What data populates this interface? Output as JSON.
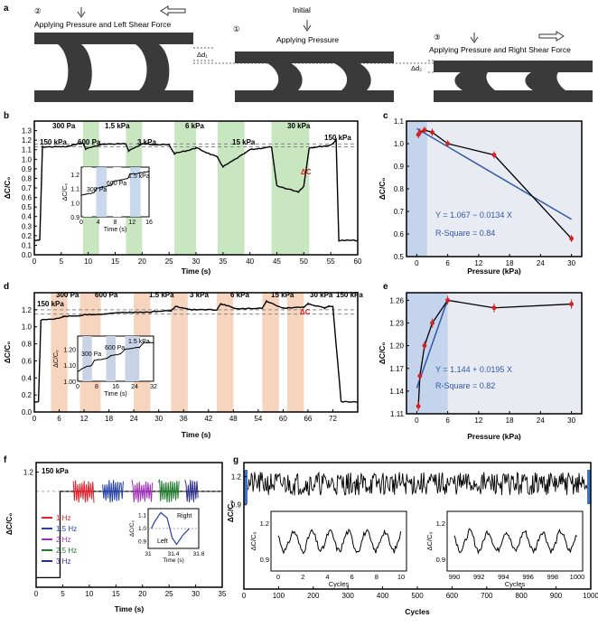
{
  "panel_letters": [
    "a",
    "b",
    "c",
    "d",
    "e",
    "f",
    "g"
  ],
  "panel_a": {
    "states": [
      {
        "num": "②",
        "label": "Applying Pressure and Left Shear Force",
        "arrows": [
          "down-arrow",
          "left-arrow"
        ]
      },
      {
        "num": "①",
        "top": "Initial",
        "label": "Applying Pressure",
        "arrows": [
          "down-arrow"
        ]
      },
      {
        "num": "③",
        "label": "Applying Pressure and Right Shear Force",
        "arrows": [
          "down-arrow",
          "right-arrow"
        ]
      }
    ],
    "d1": "Δd₁",
    "d2": "Δd₂"
  },
  "chart_data": [
    {
      "id": "b",
      "type": "line",
      "xlabel": "Time (s)",
      "ylabel": "ΔC/C₀",
      "xlim": [
        0,
        60
      ],
      "ylim": [
        0,
        1.4
      ],
      "xticks": [
        0,
        5,
        10,
        15,
        20,
        25,
        30,
        35,
        40,
        45,
        50,
        55,
        60
      ],
      "yticks": [
        0,
        0.1,
        0.2,
        0.3,
        0.4,
        0.5,
        0.6,
        0.7,
        0.8,
        0.9,
        1.0,
        1.1,
        1.2,
        1.3
      ],
      "series": [
        {
          "x": [
            0,
            1,
            1.5,
            6,
            7,
            9,
            9.5,
            13,
            14,
            17,
            17.5,
            20,
            21,
            25,
            26,
            29,
            30,
            34,
            35,
            39,
            40,
            44,
            45,
            49,
            50,
            51,
            54,
            55,
            56,
            56.5,
            60
          ],
          "y": [
            0.15,
            0.15,
            1.13,
            1.13,
            1.15,
            1.17,
            1.11,
            1.16,
            1.16,
            1.16,
            1.09,
            1.16,
            1.16,
            1.15,
            1.06,
            1.1,
            1.12,
            1.02,
            0.92,
            1.06,
            1.1,
            1.13,
            0.72,
            0.66,
            0.72,
            1.12,
            1.14,
            1.15,
            1.2,
            0.15,
            0.15
          ]
        }
      ],
      "shaded_x": [
        [
          9,
          12
        ],
        [
          17,
          20
        ],
        [
          26,
          30
        ],
        [
          34,
          39
        ],
        [
          44,
          51
        ]
      ],
      "dashed_lines": [
        1.13,
        1.16
      ],
      "annotations": [
        "150 kPa",
        "300 Pa",
        "600 Pa",
        "1.5 kPa",
        "3 kPa",
        "6 kPa",
        "15 kPa",
        "30 kPa",
        "150 kPa",
        "ΔC"
      ],
      "inset": {
        "xlabel": "Time (s)",
        "ylabel": "ΔC/C₀",
        "xticks": [
          0,
          4,
          8,
          12,
          16
        ],
        "yticks": [
          0.9,
          1.0,
          1.1,
          1.2
        ],
        "labels": [
          "300 Pa",
          "600 Pa",
          "1.5 kPa"
        ],
        "x": [
          0,
          1,
          3,
          3.5,
          5,
          7,
          7.5,
          9.5,
          11,
          11.5,
          14,
          16
        ],
        "y": [
          1.05,
          1.06,
          1.07,
          1.1,
          1.11,
          1.12,
          1.15,
          1.16,
          1.17,
          1.2,
          1.21,
          1.22
        ]
      }
    },
    {
      "id": "c",
      "type": "line",
      "xlabel": "Pressure (kPa)",
      "ylabel": "ΔC/C₀",
      "xlim": [
        -2,
        32
      ],
      "ylim": [
        0.5,
        1.1
      ],
      "xticks": [
        0,
        6,
        12,
        18,
        24,
        30
      ],
      "yticks": [
        0.5,
        0.6,
        0.7,
        0.8,
        0.9,
        1.0,
        1.1
      ],
      "series": [
        {
          "x": [
            0.3,
            0.6,
            1.5,
            3,
            6,
            15,
            30
          ],
          "y": [
            1.04,
            1.05,
            1.06,
            1.05,
            1.0,
            0.95,
            0.58
          ]
        }
      ],
      "fit": {
        "equation": "Y = 1.067 − 0.0134 X",
        "r_square": "R-Square = 0.84",
        "slope": -0.0134,
        "intercept": 1.067
      }
    },
    {
      "id": "d",
      "type": "line",
      "xlabel": "Time (s)",
      "ylabel": "ΔC/C₀",
      "xlim": [
        0,
        78
      ],
      "ylim": [
        0,
        1.4
      ],
      "xticks": [
        0,
        6,
        12,
        18,
        24,
        30,
        36,
        42,
        48,
        54,
        60,
        66,
        72
      ],
      "yticks": [
        0,
        0.2,
        0.4,
        0.6,
        0.8,
        1.0,
        1.2
      ],
      "series": [
        {
          "x": [
            0,
            1,
            1.6,
            6,
            7,
            11,
            12,
            17,
            18,
            23,
            24,
            28,
            29,
            33,
            34,
            38,
            39,
            44,
            45,
            49,
            50,
            55,
            56,
            60,
            61,
            65,
            66,
            70,
            71,
            72,
            74,
            78
          ],
          "y": [
            0.12,
            0.12,
            1.08,
            1.1,
            1.12,
            1.13,
            1.14,
            1.15,
            1.16,
            1.17,
            1.17,
            1.17,
            1.18,
            1.19,
            1.24,
            1.2,
            1.2,
            1.2,
            1.27,
            1.21,
            1.21,
            1.22,
            1.3,
            1.22,
            1.22,
            1.23,
            1.27,
            1.22,
            1.24,
            1.24,
            0.12,
            0.12
          ]
        }
      ],
      "shaded_x": [
        [
          4,
          8
        ],
        [
          11,
          16
        ],
        [
          24,
          28
        ],
        [
          33,
          37
        ],
        [
          44,
          48
        ],
        [
          55,
          59
        ],
        [
          61,
          65
        ]
      ],
      "dashed_lines": [
        1.15,
        1.2
      ],
      "annotations": [
        "150 kPa",
        "300 Pa",
        "600 Pa",
        "1.5 kPa",
        "3 kPa",
        "6 kPa",
        "15 kPa",
        "30 kPa",
        "150 kPa",
        "ΔC"
      ],
      "inset": {
        "xlabel": "Time (s)",
        "ylabel": "ΔC/C₀",
        "xticks": [
          0,
          8,
          16,
          24,
          32
        ],
        "yticks": [
          1.0,
          1.1,
          1.2
        ],
        "labels": [
          "300 Pa",
          "600 Pa",
          "1.5 kPa"
        ],
        "x": [
          0,
          2,
          6,
          7,
          12,
          14,
          18,
          20,
          26,
          28,
          32
        ],
        "y": [
          1.06,
          1.08,
          1.1,
          1.13,
          1.14,
          1.16,
          1.17,
          1.2,
          1.21,
          1.24,
          1.24
        ]
      }
    },
    {
      "id": "e",
      "type": "line",
      "xlabel": "Pressure (kPa)",
      "ylabel": "ΔC/C₀",
      "xlim": [
        -2,
        32
      ],
      "ylim": [
        1.11,
        1.27
      ],
      "xticks": [
        0,
        6,
        12,
        18,
        24,
        30
      ],
      "yticks": [
        1.11,
        1.14,
        1.17,
        1.2,
        1.23,
        1.26
      ],
      "series": [
        {
          "x": [
            0.3,
            0.6,
            1.5,
            3,
            6,
            15,
            30
          ],
          "y": [
            1.12,
            1.16,
            1.2,
            1.23,
            1.26,
            1.25,
            1.255
          ]
        }
      ],
      "fit": {
        "equation": "Y = 1.144 + 0.0195 X",
        "r_square": "R-Square = 0.82",
        "slope": 0.0195,
        "intercept": 1.144
      }
    },
    {
      "id": "f",
      "type": "line",
      "xlabel": "Time (s)",
      "ylabel": "ΔC/C₀",
      "xlim": [
        0,
        35
      ],
      "ylim": [
        0,
        1.3
      ],
      "xticks": [
        0,
        5,
        10,
        15,
        20,
        25,
        30,
        35
      ],
      "yticks": [
        1.2
      ],
      "baseline": 0.1,
      "plateau": 1.0,
      "step_x": 4.5,
      "bursts": [
        {
          "name": "1 Hz",
          "from": 7,
          "to": 11,
          "color": "#e0202a"
        },
        {
          "name": "1.5 Hz",
          "from": 12.5,
          "to": 16.5,
          "color": "#2340a8"
        },
        {
          "name": "2 Hz",
          "from": 18,
          "to": 22,
          "color": "#a030b8"
        },
        {
          "name": "2.5 Hz",
          "from": 23,
          "to": 27,
          "color": "#1f7a2e"
        },
        {
          "name": "3 Hz",
          "from": 28,
          "to": 30.5,
          "color": "#2c2c8c"
        }
      ],
      "annotations": [
        "150 kPa"
      ],
      "inset": {
        "xlabel": "Time (s)",
        "ylabel": "ΔC/C₀",
        "xticks": [
          31,
          31.4,
          31.8
        ],
        "yticks": [
          0.9,
          1.0,
          1.1
        ],
        "labels": [
          "Right",
          "Left"
        ],
        "x": [
          31.05,
          31.1,
          31.2,
          31.3,
          31.38,
          31.45,
          31.55,
          31.65
        ],
        "y": [
          1.0,
          1.05,
          1.12,
          1.08,
          0.93,
          0.88,
          0.95,
          1.0
        ]
      }
    },
    {
      "id": "g",
      "type": "line",
      "xlabel": "Cycles",
      "ylabel": "ΔC/C₀",
      "xlim": [
        0,
        1000
      ],
      "ylim": [
        0,
        1.35
      ],
      "xticks": [
        0,
        100,
        200,
        300,
        400,
        500,
        600,
        700,
        800,
        900,
        1000
      ],
      "yticks": [
        0.9,
        1.2
      ],
      "band": [
        1.0,
        1.25
      ],
      "insets": [
        {
          "xlabel": "Cycles",
          "ylabel": "ΔC/C₀",
          "xticks": [
            0,
            2,
            4,
            6,
            8,
            10
          ],
          "yticks": [
            0.9,
            1.2
          ]
        },
        {
          "xlabel": "Cycles",
          "ylabel": "ΔC/C₀",
          "xticks": [
            990,
            992,
            994,
            996,
            998,
            1000
          ],
          "yticks": [
            0.9,
            1.2
          ]
        }
      ]
    }
  ],
  "colors": {
    "green_band": "#c8e6c0",
    "blue_band": "#c4d4ec",
    "orange_band": "#f7d4be",
    "red": "#d42020",
    "fit_blue": "#2e58a8",
    "bg_panel": "#e8ebf2"
  }
}
